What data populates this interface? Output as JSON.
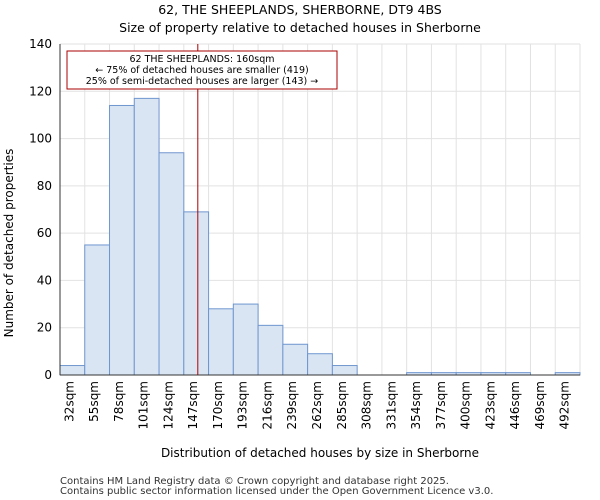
{
  "chart_data": {
    "type": "bar",
    "title": "62, THE SHEEPLANDS, SHERBORNE, DT9 4BS",
    "subtitle": "Size of property relative to detached houses in Sherborne",
    "xlabel": "Distribution of detached houses by size in Sherborne",
    "ylabel": "Number of detached properties",
    "categories": [
      "32sqm",
      "55sqm",
      "78sqm",
      "101sqm",
      "124sqm",
      "147sqm",
      "170sqm",
      "193sqm",
      "216sqm",
      "239sqm",
      "262sqm",
      "285sqm",
      "308sqm",
      "331sqm",
      "354sqm",
      "377sqm",
      "400sqm",
      "423sqm",
      "446sqm",
      "469sqm",
      "492sqm"
    ],
    "bin_edges": [
      32,
      55,
      78,
      101,
      124,
      147,
      170,
      193,
      216,
      239,
      262,
      285,
      308,
      331,
      354,
      377,
      400,
      423,
      446,
      469,
      492,
      515
    ],
    "values": [
      4,
      55,
      114,
      117,
      94,
      69,
      28,
      30,
      21,
      13,
      9,
      4,
      0,
      0,
      1,
      1,
      1,
      1,
      1,
      0,
      1
    ],
    "ylim": [
      0,
      140
    ],
    "yticks": [
      0,
      20,
      40,
      60,
      80,
      100,
      120,
      140
    ],
    "grid": true,
    "marker": {
      "value": 160,
      "color": "#aa0000"
    },
    "annotation": {
      "lines": [
        "62 THE SHEEPLANDS: 160sqm",
        "← 75% of detached houses are smaller (419)",
        "25% of semi-detached houses are larger (143) →"
      ]
    },
    "bar_fill": "#dae5f4",
    "bar_stroke": "#6f96cf",
    "grid_color": "#e2e2e2"
  },
  "footer": {
    "line1": "Contains HM Land Registry data © Crown copyright and database right 2025.",
    "line2": "Contains public sector information licensed under the Open Government Licence v3.0."
  }
}
